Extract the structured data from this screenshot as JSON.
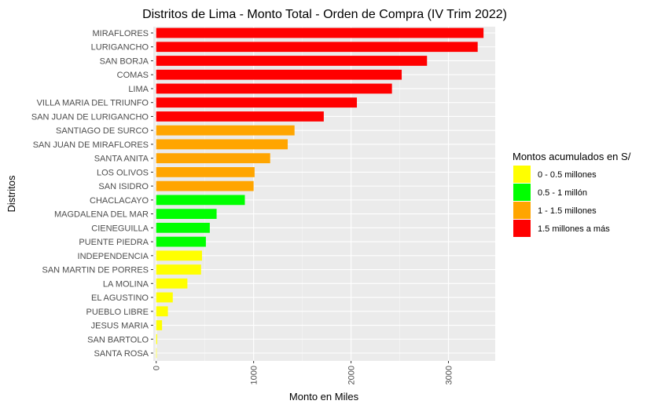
{
  "chart_data": {
    "type": "bar",
    "orientation": "horizontal",
    "title": "Distritos de Lima - Monto Total - Orden de Compra (IV Trim 2022)",
    "xlabel": "Monto en Miles",
    "ylabel": "Distritos",
    "xlim": [
      -30,
      3480
    ],
    "xticks": [
      0,
      1000,
      2000,
      3000
    ],
    "grid": true,
    "legend_position": "right",
    "legend": {
      "title": "Montos acumulados en S/",
      "entries": [
        {
          "label": "0 - 0.5 millones",
          "color": "#ffff00"
        },
        {
          "label": "0.5 - 1 millón",
          "color": "#00ff00"
        },
        {
          "label": "1 - 1.5 millones",
          "color": "#ffa500"
        },
        {
          "label": "1.5 millones a más",
          "color": "#ff0000"
        }
      ]
    },
    "categories": [
      "MIRAFLORES",
      "LURIGANCHO",
      "SAN BORJA",
      "COMAS",
      "LIMA",
      "VILLA MARIA DEL TRIUNFO",
      "SAN JUAN DE LURIGANCHO",
      "SANTIAGO DE SURCO",
      "SAN JUAN DE MIRAFLORES",
      "SANTA ANITA",
      "LOS OLIVOS",
      "SAN ISIDRO",
      "CHACLACAYO",
      "MAGDALENA DEL MAR",
      "CIENEGUILLA",
      "PUENTE PIEDRA",
      "INDEPENDENCIA",
      "SAN MARTIN DE PORRES",
      "LA MOLINA",
      "EL AGUSTINO",
      "PUEBLO LIBRE",
      "JESUS MARIA",
      "SAN BARTOLO",
      "SANTA ROSA"
    ],
    "values": [
      3360,
      3300,
      2780,
      2520,
      2420,
      2060,
      1720,
      1420,
      1350,
      1170,
      1010,
      1000,
      910,
      620,
      550,
      510,
      470,
      460,
      320,
      170,
      120,
      60,
      10,
      2
    ],
    "groups": [
      3,
      3,
      3,
      3,
      3,
      3,
      3,
      2,
      2,
      2,
      2,
      2,
      1,
      1,
      1,
      1,
      0,
      0,
      0,
      0,
      0,
      0,
      0,
      0
    ]
  }
}
